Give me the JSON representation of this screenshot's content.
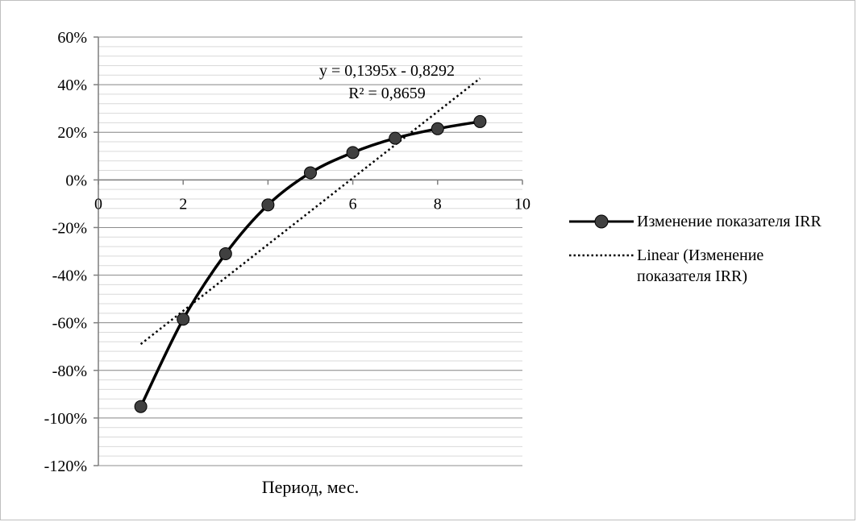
{
  "chart_data": {
    "type": "line",
    "xlabel": "Период, мес.",
    "xlim": [
      0,
      10
    ],
    "ylim": [
      -1.2,
      0.6
    ],
    "x_ticks": [
      0,
      2,
      4,
      6,
      8,
      10
    ],
    "y_ticks": [
      -1.2,
      -1.0,
      -0.8,
      -0.6,
      -0.4,
      -0.2,
      0,
      0.2,
      0.4,
      0.6
    ],
    "x_tick_labels": [
      "0",
      "2",
      "4",
      "6",
      "8",
      "10"
    ],
    "y_tick_labels": [
      "-120%",
      "-100%",
      "-80%",
      "-60%",
      "-40%",
      "-20%",
      "0%",
      "20%",
      "40%",
      "60%"
    ],
    "grid": {
      "major": true,
      "minor": true
    },
    "legend_position": "right",
    "series": [
      {
        "name": "Изменение показателя IRR",
        "x": [
          1,
          2,
          3,
          4,
          5,
          6,
          7,
          8,
          9
        ],
        "values": [
          -0.952,
          -0.585,
          -0.31,
          -0.105,
          0.03,
          0.115,
          0.175,
          0.215,
          0.245
        ],
        "color": "#000000",
        "marker": "circle",
        "marker_color": "#404040"
      }
    ],
    "trendline": {
      "name": "Linear (Изменение показателя IRR)",
      "type": "linear",
      "slope": 0.1395,
      "intercept": -0.8292,
      "x_range": [
        1,
        9
      ],
      "equation": "y = 0,1395x - 0,8292",
      "r_squared": "R² = 0,8659",
      "style": "dotted",
      "color": "#000000"
    }
  }
}
